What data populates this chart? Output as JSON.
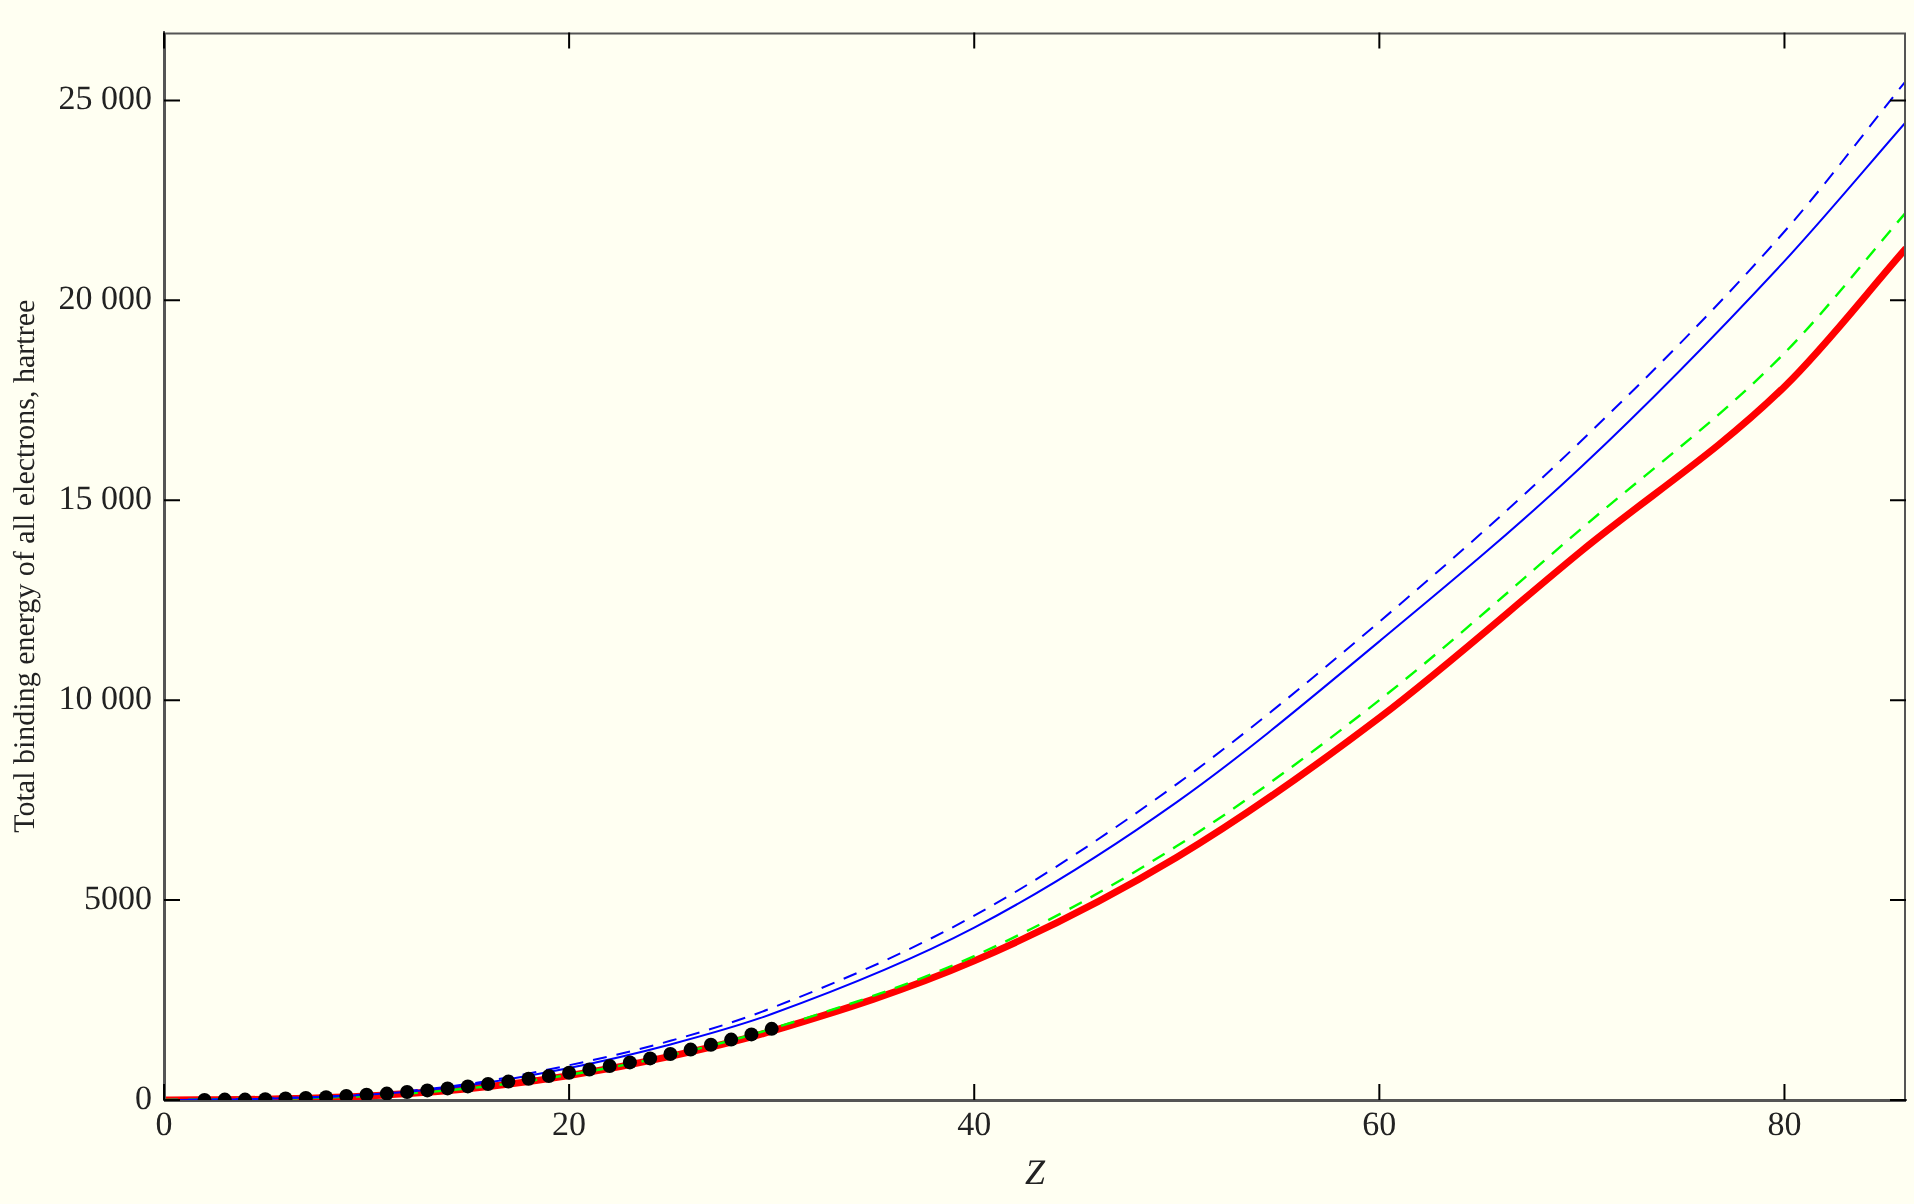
{
  "chart_data": {
    "type": "line",
    "xlabel": "Z",
    "ylabel": "Total binding energy of all electrons, hartree",
    "xlim": [
      0,
      86
    ],
    "ylim": [
      0,
      26700
    ],
    "xticks": [
      0,
      20,
      40,
      60,
      80
    ],
    "yticks": [
      0,
      5000,
      {
        "value": 10000,
        "label": "10 000"
      },
      {
        "value": 15000,
        "label": "15 000"
      },
      {
        "value": 20000,
        "label": "20 000"
      },
      {
        "value": 25000,
        "label": "25 000"
      }
    ],
    "grid": false,
    "legend": false,
    "series": [
      {
        "color": "#0000ff",
        "line_style": "dashed",
        "marker": "none",
        "x": [
          0,
          5,
          10,
          15,
          20,
          25,
          30,
          40,
          50,
          60,
          70,
          80,
          86
        ],
        "values": [
          0,
          40,
          140,
          400,
          870,
          1480,
          2300,
          4610,
          7900,
          11960,
          16500,
          21720,
          25490
        ]
      },
      {
        "color": "#0000ff",
        "line_style": "solid",
        "marker": "none",
        "x": [
          0,
          5,
          10,
          15,
          20,
          25,
          30,
          40,
          50,
          60,
          70,
          80,
          86
        ],
        "values": [
          0,
          30,
          130,
          370,
          800,
          1390,
          2150,
          4310,
          7450,
          11470,
          15850,
          20980,
          24460
        ]
      },
      {
        "color": "#00ff00",
        "line_style": "dashed",
        "marker": "none",
        "x": [
          0,
          5,
          10,
          15,
          20,
          25,
          30,
          40,
          50,
          60,
          70,
          80,
          86
        ],
        "values": [
          0,
          null,
          100,
          290,
          630,
          1120,
          1780,
          3600,
          6350,
          10000,
          14300,
          18680,
          22200
        ]
      },
      {
        "color": "#ff0000",
        "line_style": "solid",
        "marker": "none",
        "x": [
          0,
          5,
          10,
          15,
          20,
          25,
          30,
          40,
          50,
          60,
          70,
          80,
          86
        ],
        "values": [
          0,
          20,
          100,
          280,
          610,
          1090,
          1720,
          3480,
          6070,
          9560,
          13740,
          17840,
          21300
        ]
      },
      {
        "type": "scatter",
        "color": "#000000",
        "marker": "circle",
        "x": [
          2,
          3,
          4,
          5,
          6,
          7,
          8,
          9,
          10,
          11,
          12,
          13,
          14,
          15,
          16,
          17,
          18,
          19,
          20,
          21,
          22,
          23,
          24,
          25,
          26,
          27,
          28,
          29,
          30
        ],
        "values": [
          0,
          10,
          10,
          20,
          40,
          50,
          70,
          100,
          130,
          160,
          200,
          240,
          290,
          340,
          400,
          460,
          530,
          600,
          680,
          760,
          850,
          940,
          1040,
          1150,
          1260,
          1380,
          1510,
          1640,
          1780
        ]
      }
    ]
  }
}
